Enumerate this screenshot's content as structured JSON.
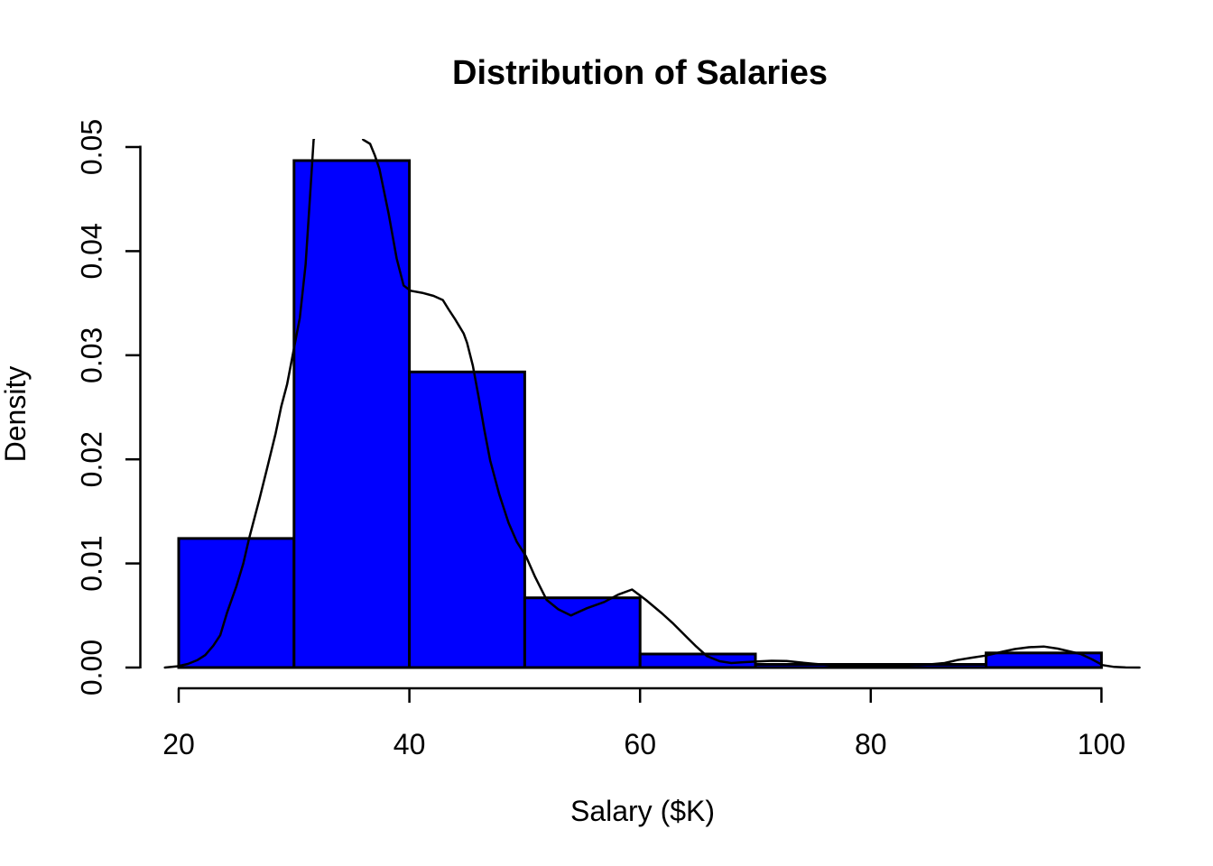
{
  "chart_data": {
    "type": "histogram",
    "title": "Distribution of Salaries",
    "xlabel": "Salary ($K)",
    "ylabel": "Density",
    "grid": false,
    "legend": "none",
    "colors": {
      "bar_fill": "#0000FF",
      "bar_border": "#000000",
      "curve": "#000000",
      "axis": "#000000",
      "background": "#FFFFFF"
    },
    "x_axis": {
      "ticks": [
        20,
        40,
        60,
        80,
        100
      ],
      "tick_labels": [
        "20",
        "40",
        "60",
        "80",
        "100"
      ]
    },
    "y_axis": {
      "ticks": [
        0,
        0.01,
        0.02,
        0.03,
        0.04,
        0.05
      ],
      "tick_labels": [
        "0.00",
        "0.01",
        "0.02",
        "0.03",
        "0.04",
        "0.05"
      ],
      "ylim": [
        0,
        0.05
      ]
    },
    "bins": {
      "breaks": [
        20,
        30,
        40,
        50,
        60,
        70,
        80,
        90,
        100
      ],
      "densities": [
        0.0124,
        0.0487,
        0.0284,
        0.0067,
        0.0013,
        0.0003,
        0.0003,
        0.0014
      ]
    },
    "density_curve": {
      "points": [
        [
          18.8,
          0.0
        ],
        [
          19.8,
          0.0001
        ],
        [
          20.8,
          0.00035
        ],
        [
          21.6,
          0.0007
        ],
        [
          22.3,
          0.0012
        ],
        [
          23.0,
          0.0021
        ],
        [
          23.6,
          0.0031
        ],
        [
          24.2,
          0.0053
        ],
        [
          25.0,
          0.0078
        ],
        [
          25.6,
          0.01
        ],
        [
          26.1,
          0.0124
        ],
        [
          27.0,
          0.0162
        ],
        [
          27.7,
          0.0193
        ],
        [
          28.4,
          0.0225
        ],
        [
          28.9,
          0.0251
        ],
        [
          29.4,
          0.0272
        ],
        [
          29.9,
          0.0301
        ],
        [
          30.5,
          0.0336
        ],
        [
          31.0,
          0.0387
        ],
        [
          31.4,
          0.0455
        ],
        [
          31.7,
          0.0507
        ],
        [
          32.7,
          0.0533
        ],
        [
          33.9,
          0.0542
        ],
        [
          35.0,
          0.0536
        ],
        [
          36.0,
          0.0507
        ],
        [
          36.6,
          0.0503
        ],
        [
          37.0,
          0.0492
        ],
        [
          37.4,
          0.0479
        ],
        [
          38.2,
          0.0436
        ],
        [
          38.9,
          0.0393
        ],
        [
          39.5,
          0.0367
        ],
        [
          40.1,
          0.0362
        ],
        [
          41.1,
          0.036
        ],
        [
          42.1,
          0.0357
        ],
        [
          42.9,
          0.0353
        ],
        [
          43.4,
          0.0344
        ],
        [
          44.0,
          0.0334
        ],
        [
          44.7,
          0.0321
        ],
        [
          45.0,
          0.0312
        ],
        [
          45.5,
          0.029
        ],
        [
          46.0,
          0.026
        ],
        [
          46.5,
          0.0228
        ],
        [
          47.0,
          0.0199
        ],
        [
          47.8,
          0.0166
        ],
        [
          48.6,
          0.0139
        ],
        [
          49.3,
          0.0121
        ],
        [
          50.1,
          0.0107
        ],
        [
          50.9,
          0.0087
        ],
        [
          51.9,
          0.0065
        ],
        [
          52.9,
          0.0056
        ],
        [
          54.0,
          0.005
        ],
        [
          55.4,
          0.0057
        ],
        [
          56.9,
          0.0063
        ],
        [
          58.1,
          0.007
        ],
        [
          59.3,
          0.0075
        ],
        [
          60.5,
          0.0065
        ],
        [
          61.9,
          0.0052
        ],
        [
          62.8,
          0.0043
        ],
        [
          63.7,
          0.0033
        ],
        [
          64.8,
          0.0021
        ],
        [
          65.8,
          0.0011
        ],
        [
          66.9,
          0.00061
        ],
        [
          67.9,
          0.00043
        ],
        [
          69.1,
          0.00052
        ],
        [
          70.2,
          0.00058
        ],
        [
          71.4,
          0.00065
        ],
        [
          72.7,
          0.00063
        ],
        [
          74.0,
          0.00048
        ],
        [
          75.2,
          0.00035
        ],
        [
          76.7,
          0.00022
        ],
        [
          78.3,
          0.00015
        ],
        [
          80.1,
          0.00015
        ],
        [
          81.7,
          0.00019
        ],
        [
          83.3,
          0.00023
        ],
        [
          84.9,
          0.00028
        ],
        [
          86.4,
          0.00043
        ],
        [
          87.5,
          0.00072
        ],
        [
          88.8,
          0.00095
        ],
        [
          90.0,
          0.00115
        ],
        [
          91.4,
          0.00152
        ],
        [
          92.5,
          0.00178
        ],
        [
          93.7,
          0.00195
        ],
        [
          95.0,
          0.00202
        ],
        [
          96.2,
          0.00182
        ],
        [
          97.2,
          0.00156
        ],
        [
          98.2,
          0.0013
        ],
        [
          99.2,
          0.00078
        ],
        [
          100.1,
          0.00023
        ],
        [
          101.1,
          6e-05
        ],
        [
          102.1,
          1e-05
        ],
        [
          103.3,
          0.0
        ]
      ]
    }
  }
}
